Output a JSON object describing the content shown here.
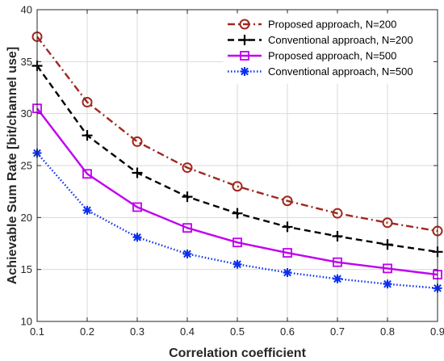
{
  "chart_data": {
    "type": "line",
    "xlabel": "Correlation coefficient",
    "ylabel": "Achievable Sum Rate [bit/channel use]",
    "xlim": [
      0.1,
      0.9
    ],
    "ylim": [
      10,
      40
    ],
    "x_ticks": [
      "0.1",
      "0.2",
      "0.3",
      "0.4",
      "0.5",
      "0.6",
      "0.7",
      "0.8",
      "0.9"
    ],
    "y_ticks": [
      "10",
      "15",
      "20",
      "25",
      "30",
      "35",
      "40"
    ],
    "grid": true,
    "legend_position": "top-right",
    "x": [
      0.1,
      0.2,
      0.3,
      0.4,
      0.5,
      0.6,
      0.7,
      0.8,
      0.9
    ],
    "series": [
      {
        "name": "Proposed approach, N=200",
        "values": [
          37.4,
          31.1,
          27.3,
          24.8,
          23.0,
          21.6,
          20.4,
          19.5,
          18.7
        ],
        "color": "#a0281e",
        "marker": "circle",
        "dash": "dashdot"
      },
      {
        "name": "Conventional approach, N=200",
        "values": [
          34.6,
          27.9,
          24.3,
          22.0,
          20.4,
          19.1,
          18.2,
          17.4,
          16.7
        ],
        "color": "#000000",
        "marker": "plus",
        "dash": "dash"
      },
      {
        "name": "Proposed approach, N=500",
        "values": [
          30.5,
          24.2,
          21.0,
          19.0,
          17.6,
          16.6,
          15.7,
          15.1,
          14.5
        ],
        "color": "#c000f0",
        "marker": "square",
        "dash": "solid"
      },
      {
        "name": "Conventional approach, N=500",
        "values": [
          26.2,
          20.7,
          18.1,
          16.5,
          15.5,
          14.7,
          14.1,
          13.6,
          13.2
        ],
        "color": "#0a2ef0",
        "marker": "asterisk",
        "dash": "dotted"
      }
    ]
  }
}
